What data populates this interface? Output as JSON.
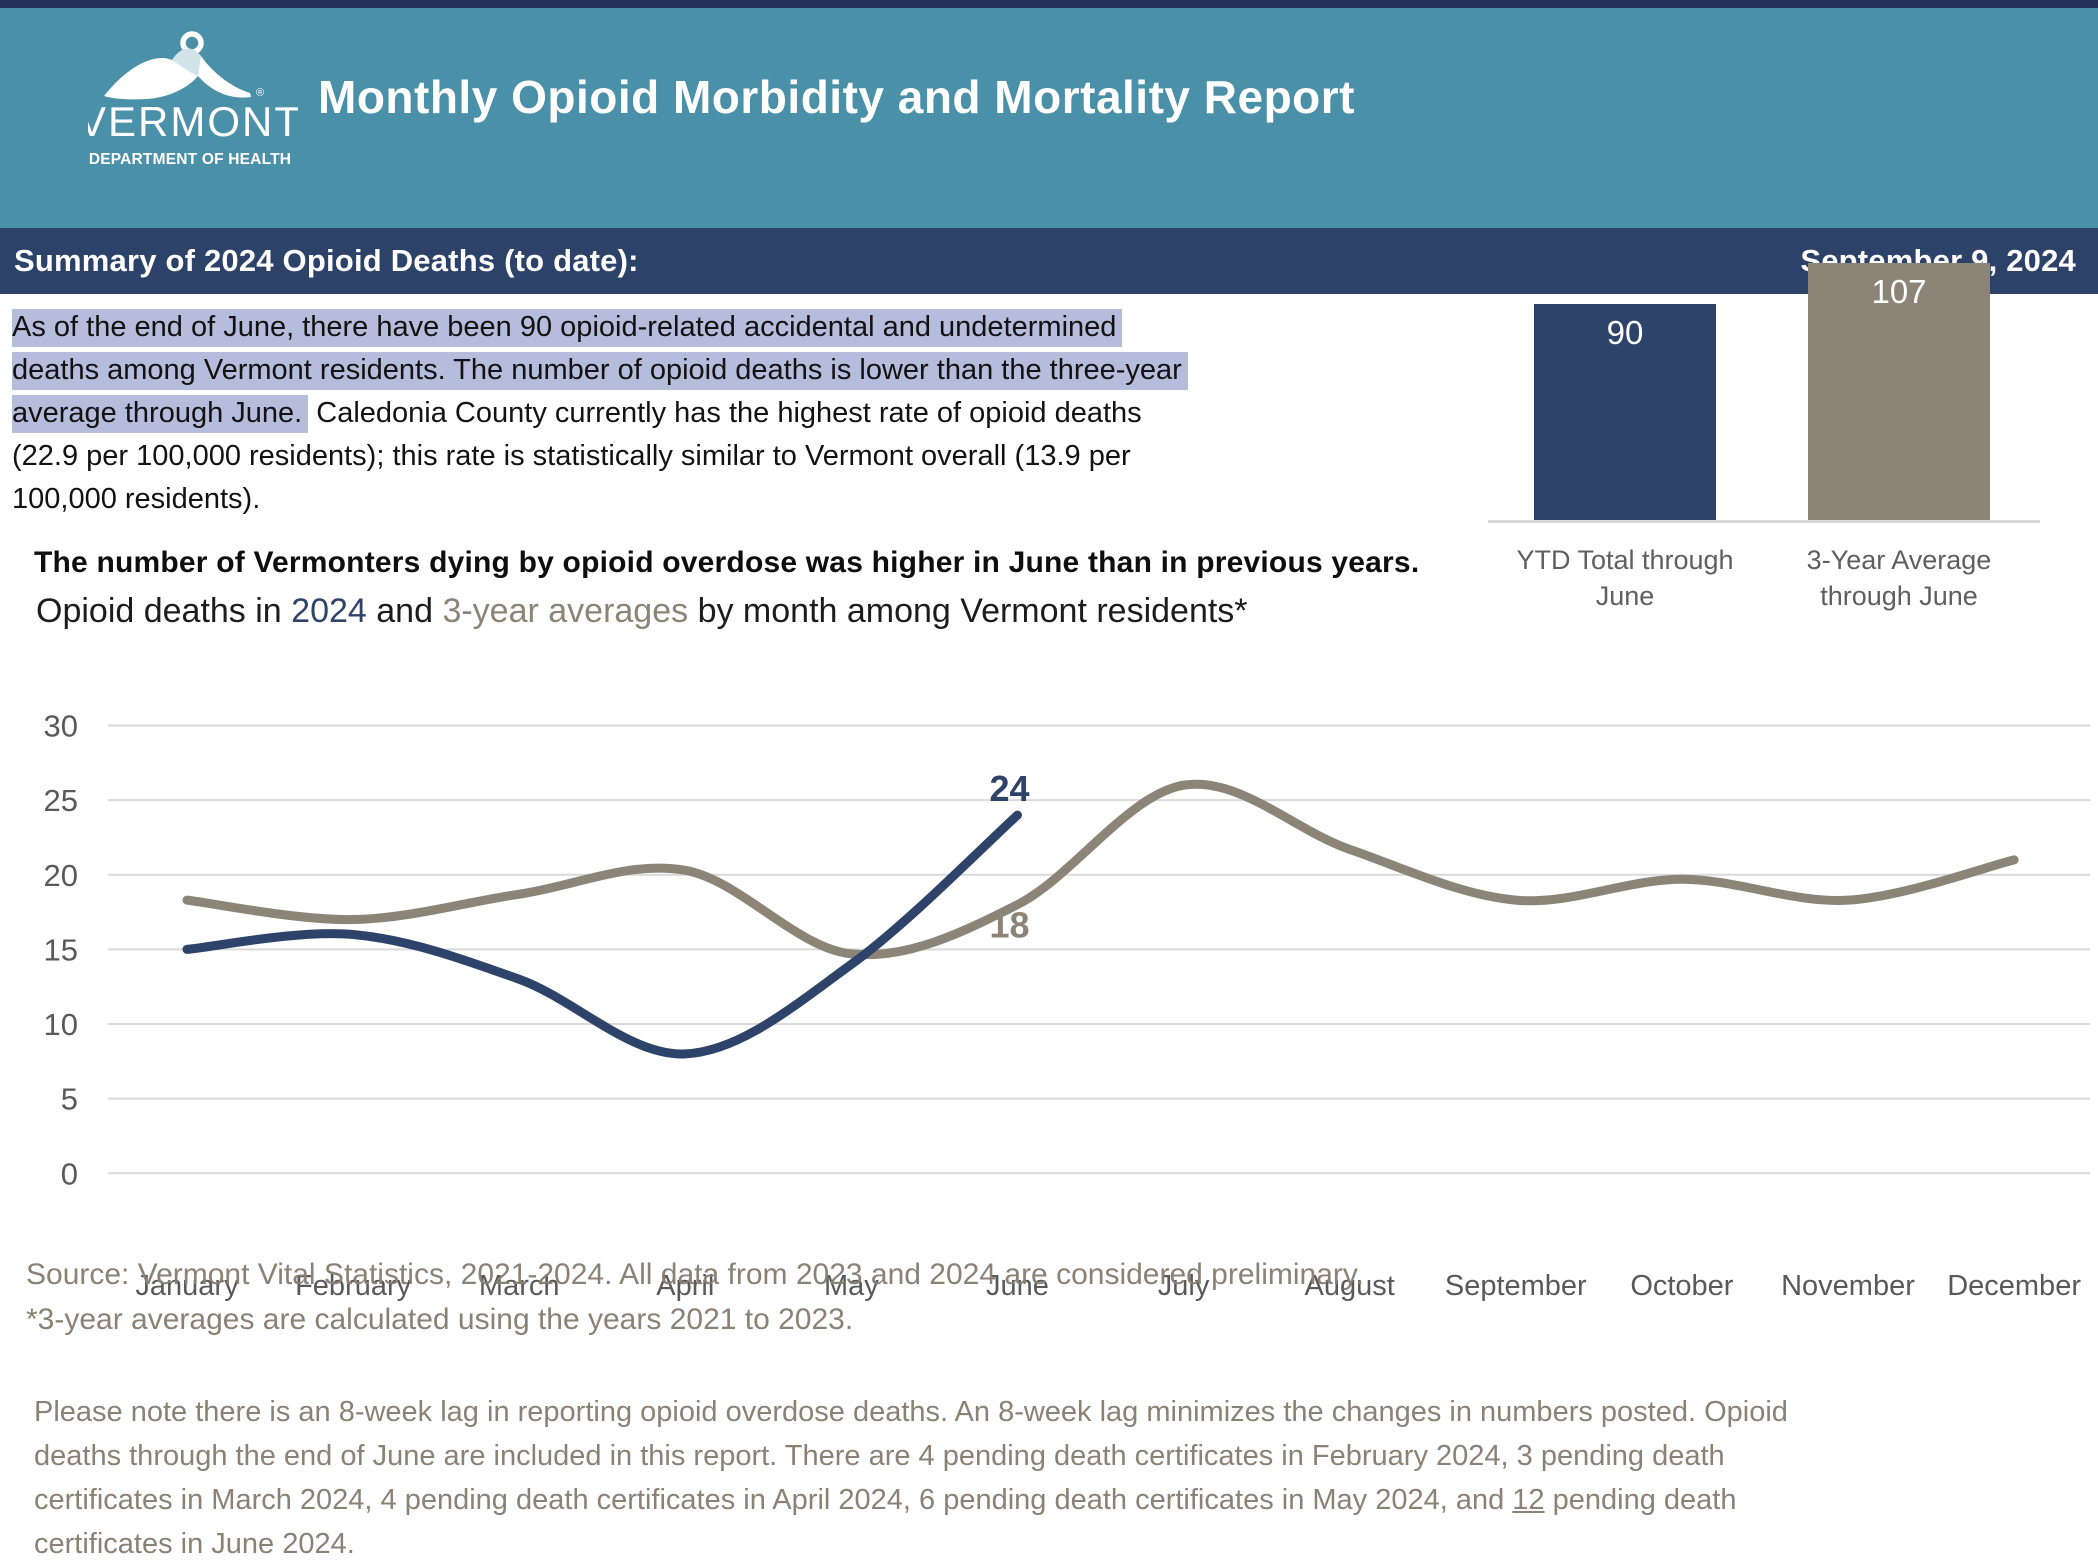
{
  "colors": {
    "navy": "#2e4369",
    "taupe": "#8d8478",
    "teal": "#4b90a9",
    "summary_navy": "#2d4269",
    "top_strip": "#22325a",
    "highlight": "#b6bcdb",
    "grid": "#d9d9d9",
    "axis_text": "#595959",
    "muted_text": "#8b8175"
  },
  "header": {
    "logo": {
      "name": "VERMONT",
      "registered_mark": "®",
      "department": "DEPARTMENT OF HEALTH"
    },
    "title": "Monthly Opioid Morbidity and Mortality Report"
  },
  "summary_bar": {
    "title": "Summary of 2024 Opioid Deaths (to date):",
    "date": "September 9, 2024"
  },
  "body": {
    "lines": [
      [
        {
          "t": "As of the end of June, there have been 90 opioid-related accidental and undetermined",
          "h": true
        }
      ],
      [
        {
          "t": "deaths among Vermont residents. The number of opioid deaths is lower than the three-year",
          "h": true
        }
      ],
      [
        {
          "t": "average through June.",
          "h": true
        },
        {
          "t": " Caledonia County currently has the highest rate of opioid deaths",
          "h": false
        }
      ],
      [
        {
          "t": "(22.9 per 100,000 residents); this rate is statistically similar to Vermont overall (13.9 per",
          "h": false
        }
      ],
      [
        {
          "t": "100,000 residents).",
          "h": false
        }
      ]
    ]
  },
  "headline": "The number of Vermonters dying by opioid overdose was higher in June than in previous years.",
  "subtitle": {
    "segments": [
      {
        "t": "Opioid deaths in "
      },
      {
        "t": "2024",
        "c": "navy"
      },
      {
        "t": " and "
      },
      {
        "t": "3-year averages",
        "c": "taupe"
      },
      {
        "t": " by month among Vermont residents*"
      }
    ]
  },
  "chart_data": [
    {
      "type": "line",
      "title": "Opioid deaths in 2024 and 3-year averages by month among Vermont residents*",
      "categories": [
        "January",
        "February",
        "March",
        "April",
        "May",
        "June",
        "July",
        "August",
        "September",
        "October",
        "November",
        "December"
      ],
      "series": [
        {
          "name": "2024",
          "color_key": "navy",
          "values": [
            15,
            16,
            13,
            8,
            14,
            24
          ]
        },
        {
          "name": "3-year averages",
          "color_key": "taupe",
          "values": [
            18.3,
            17,
            18.7,
            20.3,
            14.7,
            18,
            26,
            21.7,
            18.3,
            19.7,
            18.3,
            21
          ]
        }
      ],
      "annotations": [
        {
          "text": "24",
          "series": "2024",
          "month": "June",
          "value": 24
        },
        {
          "text": "18",
          "series": "3-year averages",
          "month": "June",
          "value": 18
        }
      ],
      "ylim": [
        0,
        30
      ],
      "yticks": [
        0,
        5,
        10,
        15,
        20,
        25,
        30
      ],
      "grid": true,
      "legend_position": "none"
    },
    {
      "type": "bar",
      "categories": [
        "YTD Total through June",
        "3-Year Average through June"
      ],
      "values": [
        90,
        107
      ],
      "bars": [
        {
          "value": "90",
          "label_lines": [
            "YTD Total through",
            "June"
          ],
          "color_key": "navy"
        },
        {
          "value": "107",
          "label_lines": [
            "3-Year Average",
            "through June"
          ],
          "color_key": "taupe"
        }
      ]
    }
  ],
  "source": {
    "lines": [
      "Source: Vermont Vital Statistics, 2021-2024. All data from 2023 and 2024 are considered preliminary.",
      "*3-year averages are calculated using the years 2021 to 2023."
    ]
  },
  "footer": {
    "lines": [
      [
        {
          "t": "Please note there is an 8-week lag in reporting opioid overdose deaths. An 8-week lag minimizes the changes in numbers posted. Opioid"
        }
      ],
      [
        {
          "t": "deaths through the end of June are included in this report. There are 4 pending death certificates in February 2024, 3 pending death"
        }
      ],
      [
        {
          "t": "certificates in March 2024, 4 pending death certificates in April 2024, 6 pending death certificates in May 2024, and "
        },
        {
          "t": "12",
          "u": true
        },
        {
          "t": " pending death"
        }
      ],
      [
        {
          "t": "certificates in June 2024."
        }
      ]
    ]
  }
}
